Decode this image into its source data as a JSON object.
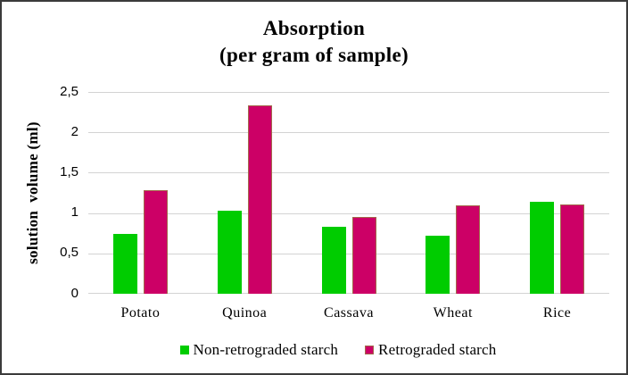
{
  "frame": {
    "background": "#FFFFFF",
    "border_color": "#3B3B3B",
    "gridline_color": "#D3D3D3"
  },
  "chart_data": {
    "type": "bar",
    "title": "Absorption",
    "subtitle": "(per gram of sample)",
    "ylabel": "solution  volume (ml)",
    "xlabel": "",
    "categories": [
      "Potato",
      "Quinoa",
      "Cassava",
      "Wheat",
      "Rice"
    ],
    "series": [
      {
        "name": "Non-retrograded starch",
        "color": "#00CC00",
        "border_color": "",
        "values": [
          0.74,
          1.03,
          0.83,
          0.72,
          1.14
        ]
      },
      {
        "name": "Retrograded starch",
        "color": "#CC0066",
        "border_color": "#A3694B",
        "values": [
          1.28,
          2.33,
          0.95,
          1.09,
          1.11
        ]
      }
    ],
    "ylim": [
      0,
      2.5
    ],
    "ytick_interval": 0.5,
    "ytick_labels": [
      "2,5",
      "2",
      "1,5",
      "1",
      "0,5",
      "0"
    ],
    "decimal_separator": ",",
    "grid": true,
    "legend_position": "bottom"
  }
}
